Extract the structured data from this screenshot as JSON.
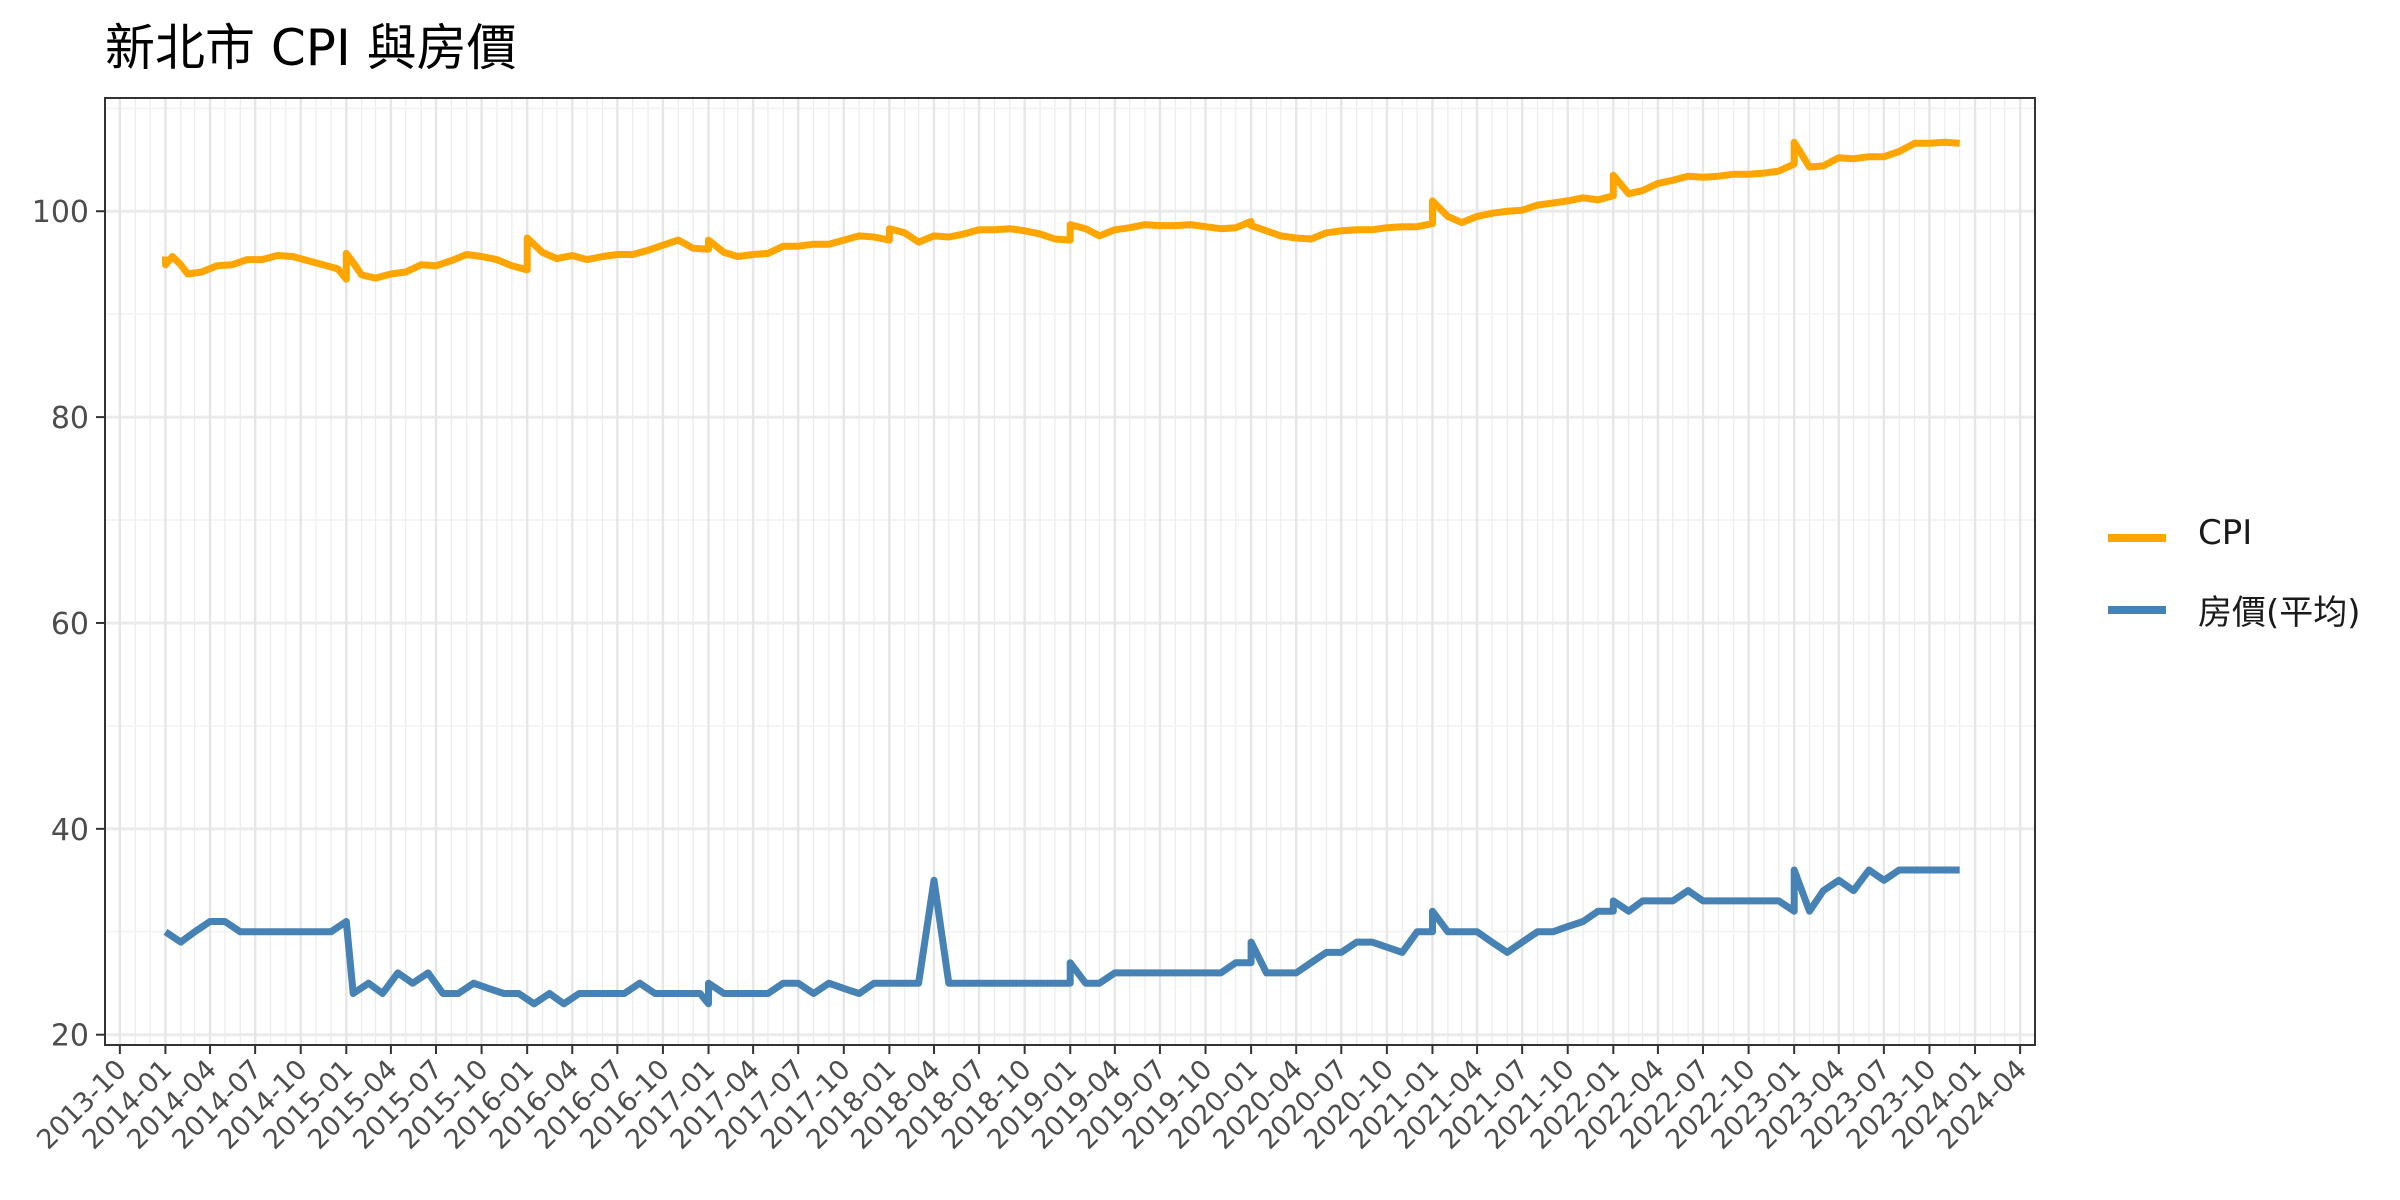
{
  "chart_data": {
    "type": "line",
    "title": "新北市 CPI 與房價",
    "xlabel": "",
    "ylabel": "",
    "x_range": [
      "2013-09",
      "2024-05"
    ],
    "ylim": [
      19,
      111
    ],
    "y_ticks": [
      20,
      40,
      60,
      80,
      100
    ],
    "x_tick_labels": [
      "2013-10",
      "2014-01",
      "2014-04",
      "2014-07",
      "2014-10",
      "2015-01",
      "2015-04",
      "2015-07",
      "2015-10",
      "2016-01",
      "2016-04",
      "2016-07",
      "2016-10",
      "2017-01",
      "2017-04",
      "2017-07",
      "2017-10",
      "2018-01",
      "2018-04",
      "2018-07",
      "2018-10",
      "2019-01",
      "2019-04",
      "2019-07",
      "2019-10",
      "2020-01",
      "2020-04",
      "2020-07",
      "2020-10",
      "2021-01",
      "2021-04",
      "2021-07",
      "2021-10",
      "2022-01",
      "2022-04",
      "2022-07",
      "2022-10",
      "2023-01",
      "2023-04",
      "2023-07",
      "2023-10",
      "2024-01",
      "2024-04"
    ],
    "grid": true,
    "legend_position": "right",
    "series": [
      {
        "name": "CPI",
        "color": "#FFA500",
        "points": [
          [
            "2014-01-01",
            95.6
          ],
          [
            "2014-01-01",
            94.8
          ],
          [
            "2014-01-15",
            95.6
          ],
          [
            "2014-02-01",
            94.8
          ],
          [
            "2014-02-15",
            93.9
          ],
          [
            "2014-03-15",
            94.1
          ],
          [
            "2014-04-15",
            94.7
          ],
          [
            "2014-05-15",
            94.8
          ],
          [
            "2014-06-15",
            95.3
          ],
          [
            "2014-07-15",
            95.3
          ],
          [
            "2014-08-15",
            95.7
          ],
          [
            "2014-09-15",
            95.6
          ],
          [
            "2014-10-15",
            95.2
          ],
          [
            "2014-11-15",
            94.8
          ],
          [
            "2014-12-15",
            94.4
          ],
          [
            "2015-01-01",
            93.4
          ],
          [
            "2015-01-01",
            95.9
          ],
          [
            "2015-01-15",
            95.0
          ],
          [
            "2015-02-01",
            93.8
          ],
          [
            "2015-03-01",
            93.5
          ],
          [
            "2015-04-01",
            93.9
          ],
          [
            "2015-05-01",
            94.1
          ],
          [
            "2015-06-01",
            94.8
          ],
          [
            "2015-07-01",
            94.7
          ],
          [
            "2015-08-01",
            95.2
          ],
          [
            "2015-09-01",
            95.8
          ],
          [
            "2015-10-01",
            95.6
          ],
          [
            "2015-11-01",
            95.3
          ],
          [
            "2015-12-01",
            94.7
          ],
          [
            "2016-01-01",
            94.3
          ],
          [
            "2016-01-01",
            97.4
          ],
          [
            "2016-02-01",
            96.0
          ],
          [
            "2016-03-01",
            95.4
          ],
          [
            "2016-04-01",
            95.7
          ],
          [
            "2016-05-01",
            95.3
          ],
          [
            "2016-06-01",
            95.6
          ],
          [
            "2016-07-01",
            95.8
          ],
          [
            "2016-08-01",
            95.8
          ],
          [
            "2016-09-01",
            96.2
          ],
          [
            "2016-10-01",
            96.7
          ],
          [
            "2016-11-01",
            97.2
          ],
          [
            "2016-12-01",
            96.4
          ],
          [
            "2017-01-01",
            96.3
          ],
          [
            "2017-01-01",
            97.2
          ],
          [
            "2017-02-01",
            96.0
          ],
          [
            "2017-03-01",
            95.6
          ],
          [
            "2017-04-01",
            95.8
          ],
          [
            "2017-05-01",
            95.9
          ],
          [
            "2017-06-01",
            96.6
          ],
          [
            "2017-07-01",
            96.6
          ],
          [
            "2017-08-01",
            96.8
          ],
          [
            "2017-09-01",
            96.8
          ],
          [
            "2017-10-01",
            97.2
          ],
          [
            "2017-11-01",
            97.6
          ],
          [
            "2017-12-01",
            97.5
          ],
          [
            "2018-01-01",
            97.2
          ],
          [
            "2018-01-01",
            98.3
          ],
          [
            "2018-02-01",
            97.9
          ],
          [
            "2018-03-01",
            97.0
          ],
          [
            "2018-04-01",
            97.6
          ],
          [
            "2018-05-01",
            97.5
          ],
          [
            "2018-06-01",
            97.8
          ],
          [
            "2018-07-01",
            98.2
          ],
          [
            "2018-08-01",
            98.2
          ],
          [
            "2018-09-01",
            98.3
          ],
          [
            "2018-10-01",
            98.1
          ],
          [
            "2018-11-01",
            97.8
          ],
          [
            "2018-12-01",
            97.3
          ],
          [
            "2019-01-01",
            97.2
          ],
          [
            "2019-01-01",
            98.7
          ],
          [
            "2019-02-01",
            98.3
          ],
          [
            "2019-03-01",
            97.6
          ],
          [
            "2019-04-01",
            98.2
          ],
          [
            "2019-05-01",
            98.4
          ],
          [
            "2019-06-01",
            98.7
          ],
          [
            "2019-07-01",
            98.6
          ],
          [
            "2019-08-01",
            98.6
          ],
          [
            "2019-09-01",
            98.7
          ],
          [
            "2019-10-01",
            98.5
          ],
          [
            "2019-11-01",
            98.3
          ],
          [
            "2019-12-01",
            98.4
          ],
          [
            "2020-01-01",
            99.0
          ],
          [
            "2020-01-01",
            98.6
          ],
          [
            "2020-02-01",
            98.1
          ],
          [
            "2020-03-01",
            97.6
          ],
          [
            "2020-04-01",
            97.4
          ],
          [
            "2020-05-01",
            97.3
          ],
          [
            "2020-06-01",
            97.9
          ],
          [
            "2020-07-01",
            98.1
          ],
          [
            "2020-08-01",
            98.2
          ],
          [
            "2020-09-01",
            98.2
          ],
          [
            "2020-10-01",
            98.4
          ],
          [
            "2020-11-01",
            98.5
          ],
          [
            "2020-12-01",
            98.5
          ],
          [
            "2021-01-01",
            98.8
          ],
          [
            "2021-01-01",
            101.0
          ],
          [
            "2021-02-01",
            99.5
          ],
          [
            "2021-03-01",
            98.9
          ],
          [
            "2021-04-01",
            99.5
          ],
          [
            "2021-05-01",
            99.8
          ],
          [
            "2021-06-01",
            100.0
          ],
          [
            "2021-07-01",
            100.1
          ],
          [
            "2021-08-01",
            100.6
          ],
          [
            "2021-09-01",
            100.8
          ],
          [
            "2021-10-01",
            101.0
          ],
          [
            "2021-11-01",
            101.3
          ],
          [
            "2021-12-01",
            101.1
          ],
          [
            "2022-01-01",
            101.5
          ],
          [
            "2022-01-01",
            103.5
          ],
          [
            "2022-02-01",
            101.7
          ],
          [
            "2022-03-01",
            102.0
          ],
          [
            "2022-04-01",
            102.7
          ],
          [
            "2022-05-01",
            103.0
          ],
          [
            "2022-06-01",
            103.4
          ],
          [
            "2022-07-01",
            103.3
          ],
          [
            "2022-08-01",
            103.4
          ],
          [
            "2022-09-01",
            103.6
          ],
          [
            "2022-10-01",
            103.6
          ],
          [
            "2022-11-01",
            103.7
          ],
          [
            "2022-12-01",
            103.9
          ],
          [
            "2023-01-01",
            104.6
          ],
          [
            "2023-01-01",
            106.7
          ],
          [
            "2023-02-01",
            104.3
          ],
          [
            "2023-03-01",
            104.4
          ],
          [
            "2023-04-01",
            105.2
          ],
          [
            "2023-05-01",
            105.1
          ],
          [
            "2023-06-01",
            105.3
          ],
          [
            "2023-07-01",
            105.3
          ],
          [
            "2023-08-01",
            105.8
          ],
          [
            "2023-09-01",
            106.6
          ],
          [
            "2023-10-01",
            106.6
          ],
          [
            "2023-11-01",
            106.7
          ],
          [
            "2023-12-01",
            106.6
          ]
        ]
      },
      {
        "name": "房價(平均)",
        "color": "#4682B4",
        "points": [
          [
            "2014-01-01",
            30
          ],
          [
            "2014-02-01",
            29
          ],
          [
            "2014-03-01",
            30
          ],
          [
            "2014-04-01",
            31
          ],
          [
            "2014-05-01",
            31
          ],
          [
            "2014-06-01",
            30
          ],
          [
            "2014-07-01",
            30
          ],
          [
            "2014-08-01",
            30
          ],
          [
            "2014-09-01",
            30
          ],
          [
            "2014-10-01",
            30
          ],
          [
            "2014-11-01",
            30
          ],
          [
            "2014-12-01",
            30
          ],
          [
            "2015-01-01",
            31
          ],
          [
            "2015-01-15",
            24
          ],
          [
            "2015-02-15",
            25
          ],
          [
            "2015-03-15",
            24
          ],
          [
            "2015-04-15",
            26
          ],
          [
            "2015-05-15",
            25
          ],
          [
            "2015-06-15",
            26
          ],
          [
            "2015-07-15",
            24
          ],
          [
            "2015-08-15",
            24
          ],
          [
            "2015-09-15",
            25
          ],
          [
            "2015-10-15",
            24.5
          ],
          [
            "2015-11-15",
            24
          ],
          [
            "2015-12-15",
            24
          ],
          [
            "2016-01-15",
            23
          ],
          [
            "2016-02-15",
            24
          ],
          [
            "2016-03-15",
            23
          ],
          [
            "2016-04-15",
            24
          ],
          [
            "2016-05-15",
            24
          ],
          [
            "2016-06-15",
            24
          ],
          [
            "2016-07-15",
            24
          ],
          [
            "2016-08-15",
            25
          ],
          [
            "2016-09-15",
            24
          ],
          [
            "2016-10-15",
            24
          ],
          [
            "2016-11-15",
            24
          ],
          [
            "2016-12-15",
            24
          ],
          [
            "2017-01-01",
            23
          ],
          [
            "2017-01-01",
            25
          ],
          [
            "2017-02-01",
            24
          ],
          [
            "2017-03-01",
            24
          ],
          [
            "2017-04-01",
            24
          ],
          [
            "2017-05-01",
            24
          ],
          [
            "2017-06-01",
            25
          ],
          [
            "2017-07-01",
            25
          ],
          [
            "2017-08-01",
            24
          ],
          [
            "2017-09-01",
            25
          ],
          [
            "2017-10-01",
            24.5
          ],
          [
            "2017-11-01",
            24
          ],
          [
            "2017-12-01",
            25
          ],
          [
            "2018-01-01",
            25
          ],
          [
            "2018-02-01",
            25
          ],
          [
            "2018-03-01",
            25
          ],
          [
            "2018-04-01",
            35
          ],
          [
            "2018-05-01",
            25
          ],
          [
            "2018-06-01",
            25
          ],
          [
            "2018-07-01",
            25
          ],
          [
            "2018-08-01",
            25
          ],
          [
            "2018-09-01",
            25
          ],
          [
            "2018-10-01",
            25
          ],
          [
            "2018-11-01",
            25
          ],
          [
            "2018-12-01",
            25
          ],
          [
            "2019-01-01",
            25
          ],
          [
            "2019-01-01",
            27
          ],
          [
            "2019-02-01",
            25
          ],
          [
            "2019-03-01",
            25
          ],
          [
            "2019-04-01",
            26
          ],
          [
            "2019-05-01",
            26
          ],
          [
            "2019-06-01",
            26
          ],
          [
            "2019-07-01",
            26
          ],
          [
            "2019-08-01",
            26
          ],
          [
            "2019-09-01",
            26
          ],
          [
            "2019-10-01",
            26
          ],
          [
            "2019-11-01",
            26
          ],
          [
            "2019-12-01",
            27
          ],
          [
            "2020-01-01",
            27
          ],
          [
            "2020-01-01",
            29
          ],
          [
            "2020-02-01",
            26
          ],
          [
            "2020-03-01",
            26
          ],
          [
            "2020-04-01",
            26
          ],
          [
            "2020-05-01",
            27
          ],
          [
            "2020-06-01",
            28
          ],
          [
            "2020-07-01",
            28
          ],
          [
            "2020-08-01",
            29
          ],
          [
            "2020-09-01",
            29
          ],
          [
            "2020-10-01",
            28.5
          ],
          [
            "2020-11-01",
            28
          ],
          [
            "2020-12-01",
            30
          ],
          [
            "2021-01-01",
            30
          ],
          [
            "2021-01-01",
            32
          ],
          [
            "2021-02-01",
            30
          ],
          [
            "2021-03-01",
            30
          ],
          [
            "2021-04-01",
            30
          ],
          [
            "2021-05-01",
            29
          ],
          [
            "2021-06-01",
            28
          ],
          [
            "2021-07-01",
            29
          ],
          [
            "2021-08-01",
            30
          ],
          [
            "2021-09-01",
            30
          ],
          [
            "2021-10-01",
            30.5
          ],
          [
            "2021-11-01",
            31
          ],
          [
            "2021-12-01",
            32
          ],
          [
            "2022-01-01",
            32
          ],
          [
            "2022-01-01",
            33
          ],
          [
            "2022-02-01",
            32
          ],
          [
            "2022-03-01",
            33
          ],
          [
            "2022-04-01",
            33
          ],
          [
            "2022-05-01",
            33
          ],
          [
            "2022-06-01",
            34
          ],
          [
            "2022-07-01",
            33
          ],
          [
            "2022-08-01",
            33
          ],
          [
            "2022-09-01",
            33
          ],
          [
            "2022-10-01",
            33
          ],
          [
            "2022-11-01",
            33
          ],
          [
            "2022-12-01",
            33
          ],
          [
            "2023-01-01",
            32
          ],
          [
            "2023-01-01",
            36
          ],
          [
            "2023-02-01",
            32
          ],
          [
            "2023-03-01",
            34
          ],
          [
            "2023-04-01",
            35
          ],
          [
            "2023-05-01",
            34
          ],
          [
            "2023-06-01",
            36
          ],
          [
            "2023-07-01",
            35
          ],
          [
            "2023-08-01",
            36
          ],
          [
            "2023-09-01",
            36
          ],
          [
            "2023-10-01",
            36
          ],
          [
            "2023-11-01",
            36
          ],
          [
            "2023-12-01",
            36
          ]
        ]
      }
    ]
  }
}
